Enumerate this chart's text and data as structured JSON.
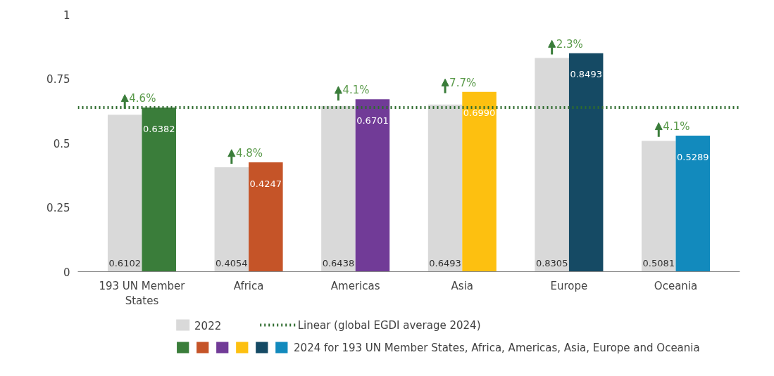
{
  "chart_data": {
    "type": "bar",
    "categories": [
      "193 UN Member States",
      "Africa",
      "Americas",
      "Asia",
      "Europe",
      "Oceania"
    ],
    "series": [
      {
        "name": "2022",
        "color": "#d9d9d9",
        "values": [
          0.6102,
          0.4054,
          0.6438,
          0.6493,
          0.8305,
          0.5081
        ],
        "value_labels": [
          "0.6102",
          "0.4054",
          "0.6438",
          "0.6493",
          "0.8305",
          "0.5081"
        ]
      },
      {
        "name": "2024 for 193 UN Member States, Africa, Americas, Asia, Europe and Oceania",
        "colors": [
          "#3a7d3a",
          "#c55428",
          "#713b97",
          "#fdc010",
          "#154a64",
          "#128abd"
        ],
        "values": [
          0.6382,
          0.4247,
          0.6701,
          0.699,
          0.8493,
          0.5289
        ],
        "value_labels": [
          "0.6382",
          "0.4247",
          "0.6701",
          "0.6990",
          "0.8493",
          "0.5289"
        ]
      }
    ],
    "ylim": [
      0,
      1
    ],
    "yticks": [
      0,
      0.25,
      0.5,
      0.75,
      1
    ],
    "grid": false,
    "legend": "bottom",
    "ref_lines": [
      {
        "axis": "y",
        "value": 0.6382,
        "label": "Linear (global EGDI average 2024)",
        "color": "#2e6b2e",
        "line_style": "dotted"
      }
    ],
    "annotations": [
      "4.6%",
      "4.8%",
      "4.1%",
      "7.7%",
      "2.3%",
      "4.1%"
    ]
  }
}
